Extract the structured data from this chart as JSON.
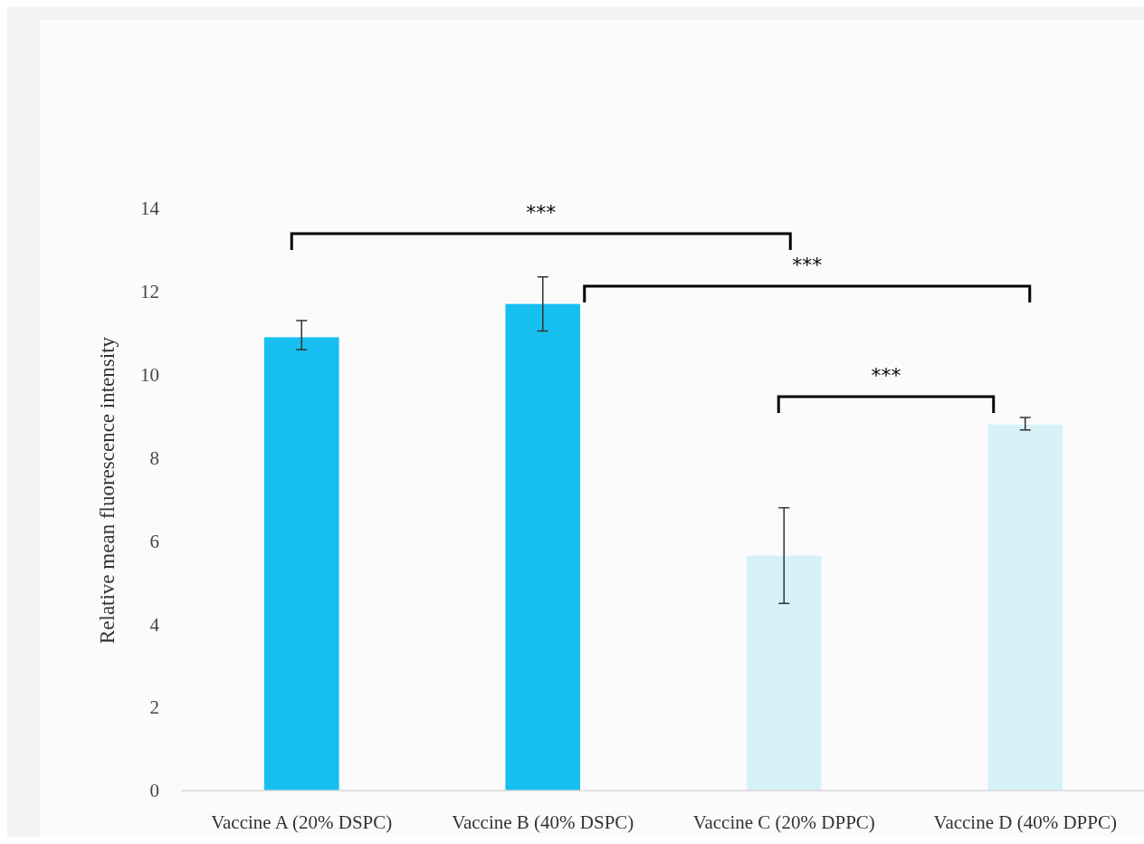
{
  "chart_data": {
    "type": "bar",
    "ylabel": "Relative mean fluorescence intensity",
    "categories": [
      "Vaccine A (20% DSPC)",
      "Vaccine B (40% DSPC)",
      "Vaccine C (20% DPPC)",
      "Vaccine D (40% DPPC)"
    ],
    "values": [
      10.9,
      11.7,
      5.65,
      8.8
    ],
    "colors": [
      "#17bff0",
      "#17bff0",
      "#d6f2f8",
      "#d6f2f8"
    ],
    "errors": [
      [
        10.6,
        11.3
      ],
      [
        11.05,
        12.35
      ],
      [
        4.5,
        6.8
      ],
      [
        8.67,
        8.97
      ]
    ],
    "ylim": [
      0,
      14
    ],
    "yticks": [
      0,
      2,
      4,
      6,
      8,
      10,
      12,
      14
    ],
    "annotations": [
      "***",
      "***",
      "***"
    ],
    "grid": false
  }
}
